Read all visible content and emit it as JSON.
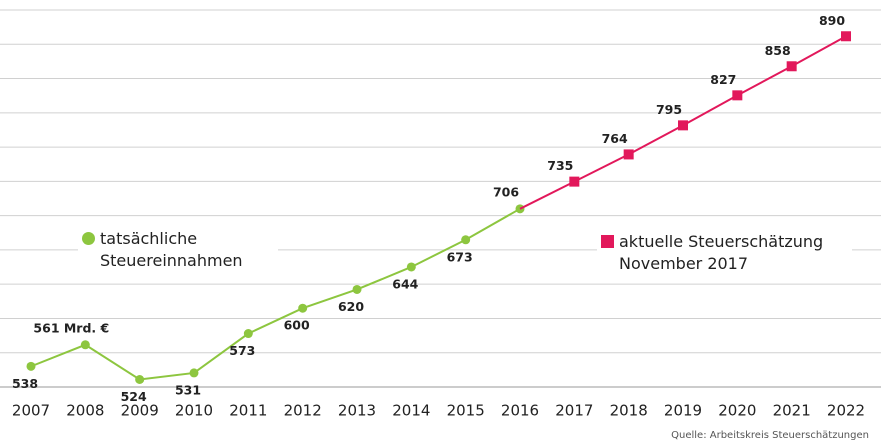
{
  "chart_data": {
    "type": "line",
    "categories": [
      "2007",
      "2008",
      "2009",
      "2010",
      "2011",
      "2012",
      "2013",
      "2014",
      "2015",
      "2016",
      "2017",
      "2018",
      "2019",
      "2020",
      "2021",
      "2022"
    ],
    "series": [
      {
        "name": "tatsächliche Steuereinnahmen",
        "color": "#8dc63f",
        "marker": "circle",
        "values": [
          538,
          561,
          524,
          531,
          573,
          600,
          620,
          644,
          673,
          706,
          null,
          null,
          null,
          null,
          null,
          null
        ],
        "value_labels": [
          "538",
          "561 Mrd. €",
          "524",
          "531",
          "573",
          "600",
          "620",
          "644",
          "673",
          "706",
          null,
          null,
          null,
          null,
          null,
          null
        ]
      },
      {
        "name": "aktuelle Steuerschätzung November 2017",
        "color": "#e2185b",
        "marker": "square",
        "values": [
          null,
          null,
          null,
          null,
          null,
          null,
          null,
          null,
          null,
          706,
          735,
          764,
          795,
          827,
          858,
          890
        ],
        "value_labels": [
          null,
          null,
          null,
          null,
          null,
          null,
          null,
          null,
          null,
          null,
          "735",
          "764",
          "795",
          "827",
          "858",
          "890"
        ]
      }
    ],
    "ylim": [
      516,
      918
    ],
    "grid": true,
    "source": "Quelle: Arbeitskreis Steuerschätzungen"
  }
}
